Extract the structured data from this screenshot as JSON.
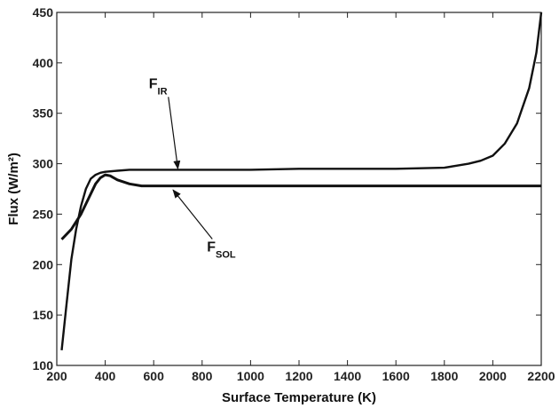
{
  "chart_data": {
    "type": "line",
    "title": "",
    "xlabel": "Surface Temperature (K)",
    "ylabel": "Flux (W/m²)",
    "xlim": [
      200,
      2200
    ],
    "ylim": [
      100,
      450
    ],
    "xticks": [
      200,
      400,
      600,
      800,
      1000,
      1200,
      1400,
      1600,
      1800,
      2000,
      2200
    ],
    "yticks": [
      100,
      150,
      200,
      250,
      300,
      350,
      400,
      450
    ],
    "grid": false,
    "series": [
      {
        "name": "F_IR",
        "label_main": "F",
        "label_sub": "IR",
        "color": "#111111",
        "points": [
          [
            220,
            115
          ],
          [
            240,
            160
          ],
          [
            260,
            205
          ],
          [
            280,
            235
          ],
          [
            300,
            258
          ],
          [
            320,
            275
          ],
          [
            340,
            285
          ],
          [
            360,
            289
          ],
          [
            380,
            291
          ],
          [
            400,
            292
          ],
          [
            450,
            293
          ],
          [
            500,
            294
          ],
          [
            600,
            294
          ],
          [
            800,
            294
          ],
          [
            1000,
            294
          ],
          [
            1200,
            295
          ],
          [
            1400,
            295
          ],
          [
            1600,
            295
          ],
          [
            1800,
            296
          ],
          [
            1850,
            298
          ],
          [
            1900,
            300
          ],
          [
            1950,
            303
          ],
          [
            2000,
            308
          ],
          [
            2050,
            320
          ],
          [
            2100,
            340
          ],
          [
            2150,
            375
          ],
          [
            2180,
            410
          ],
          [
            2200,
            450
          ]
        ]
      },
      {
        "name": "F_SOL",
        "label_main": "F",
        "label_sub": "SOL",
        "color": "#111111",
        "points": [
          [
            220,
            225
          ],
          [
            260,
            235
          ],
          [
            300,
            250
          ],
          [
            330,
            265
          ],
          [
            360,
            280
          ],
          [
            380,
            286
          ],
          [
            400,
            289
          ],
          [
            420,
            288
          ],
          [
            450,
            284
          ],
          [
            500,
            280
          ],
          [
            550,
            278
          ],
          [
            600,
            278
          ],
          [
            800,
            278
          ],
          [
            1000,
            278
          ],
          [
            1400,
            278
          ],
          [
            1800,
            278
          ],
          [
            2200,
            278
          ]
        ]
      }
    ],
    "annotations": [
      {
        "series": "F_IR",
        "label_at": [
          580,
          375
        ],
        "arrow_to": [
          700,
          295
        ]
      },
      {
        "series": "F_SOL",
        "label_at": [
          820,
          213
        ],
        "arrow_to": [
          680,
          274
        ]
      }
    ]
  }
}
